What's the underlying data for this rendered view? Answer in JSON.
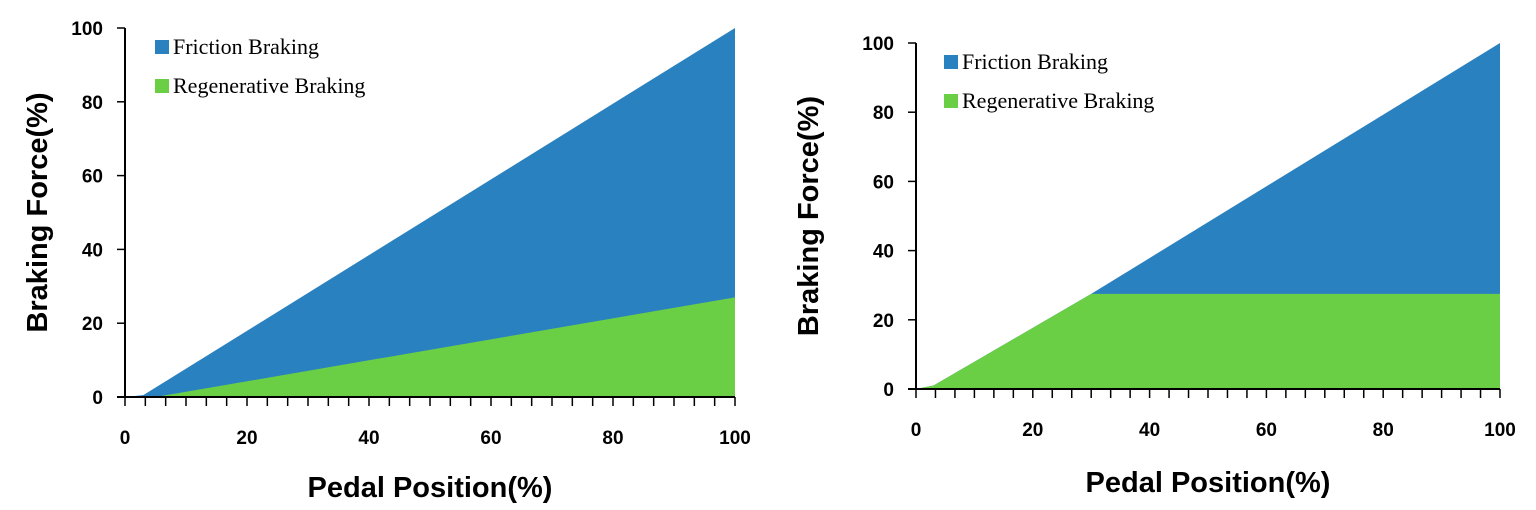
{
  "chart_data": [
    {
      "type": "area",
      "xlabel": "Pedal Position(%)",
      "ylabel": "Braking Force(%)",
      "xlim": [
        0,
        100
      ],
      "ylim": [
        0,
        100
      ],
      "xticks": [
        0,
        20,
        40,
        60,
        80,
        100
      ],
      "yticks": [
        0,
        20,
        40,
        60,
        80,
        100
      ],
      "grid": false,
      "legend_position": "top-left",
      "series": [
        {
          "name": "Friction Braking",
          "color": "#2a81c0",
          "x": [
            0,
            3,
            100
          ],
          "y": [
            0,
            0.5,
            100
          ]
        },
        {
          "name": "Regenerative Braking",
          "color": "#6acf45",
          "x": [
            0,
            5,
            100
          ],
          "y": [
            0,
            0,
            27
          ]
        }
      ]
    },
    {
      "type": "area",
      "xlabel": "Pedal Position(%)",
      "ylabel": "Braking Force(%)",
      "xlim": [
        0,
        100
      ],
      "ylim": [
        0,
        100
      ],
      "xticks": [
        0,
        20,
        40,
        60,
        80,
        100
      ],
      "yticks": [
        0,
        20,
        40,
        60,
        80,
        100
      ],
      "grid": false,
      "legend_position": "top-left",
      "series": [
        {
          "name": "Friction Braking",
          "color": "#2a81c0",
          "x": [
            0,
            3,
            30,
            100
          ],
          "y": [
            0,
            1,
            27.5,
            100
          ]
        },
        {
          "name": "Regenerative Braking",
          "color": "#6acf45",
          "x": [
            0,
            3,
            30,
            100
          ],
          "y": [
            0,
            1,
            27.5,
            27.5
          ]
        }
      ]
    }
  ]
}
